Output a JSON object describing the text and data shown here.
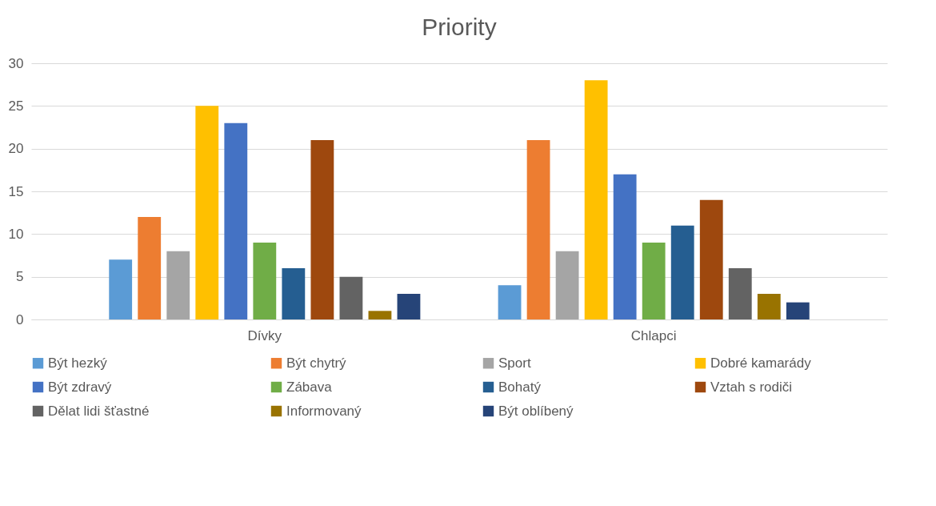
{
  "chart_data": {
    "type": "bar",
    "title": "Priority",
    "categories": [
      "Dívky",
      "Chlapci"
    ],
    "series": [
      {
        "name": "Být hezký",
        "color": "#5b9bd5",
        "values": [
          7,
          4
        ]
      },
      {
        "name": "Být chytrý",
        "color": "#ed7d31",
        "values": [
          12,
          21
        ]
      },
      {
        "name": "Sport",
        "color": "#a5a5a5",
        "values": [
          8,
          8
        ]
      },
      {
        "name": "Dobré kamarády",
        "color": "#ffc000",
        "values": [
          25,
          28
        ]
      },
      {
        "name": "Být zdravý",
        "color": "#4472c4",
        "values": [
          23,
          17
        ]
      },
      {
        "name": "Zábava",
        "color": "#70ad47",
        "values": [
          9,
          9
        ]
      },
      {
        "name": "Bohatý",
        "color": "#255e91",
        "values": [
          6,
          11
        ]
      },
      {
        "name": "Vztah s rodiči",
        "color": "#9e480e",
        "values": [
          21,
          14
        ]
      },
      {
        "name": "Dělat lidi šťastné",
        "color": "#636363",
        "values": [
          5,
          6
        ]
      },
      {
        "name": "Informovaný",
        "color": "#997300",
        "values": [
          1,
          3
        ]
      },
      {
        "name": "Být oblíbený",
        "color": "#264478",
        "values": [
          3,
          2
        ]
      }
    ],
    "ylim": [
      0,
      30
    ],
    "yticks": [
      0,
      5,
      10,
      15,
      20,
      25,
      30
    ],
    "grid": "y",
    "legend": "bottom"
  }
}
